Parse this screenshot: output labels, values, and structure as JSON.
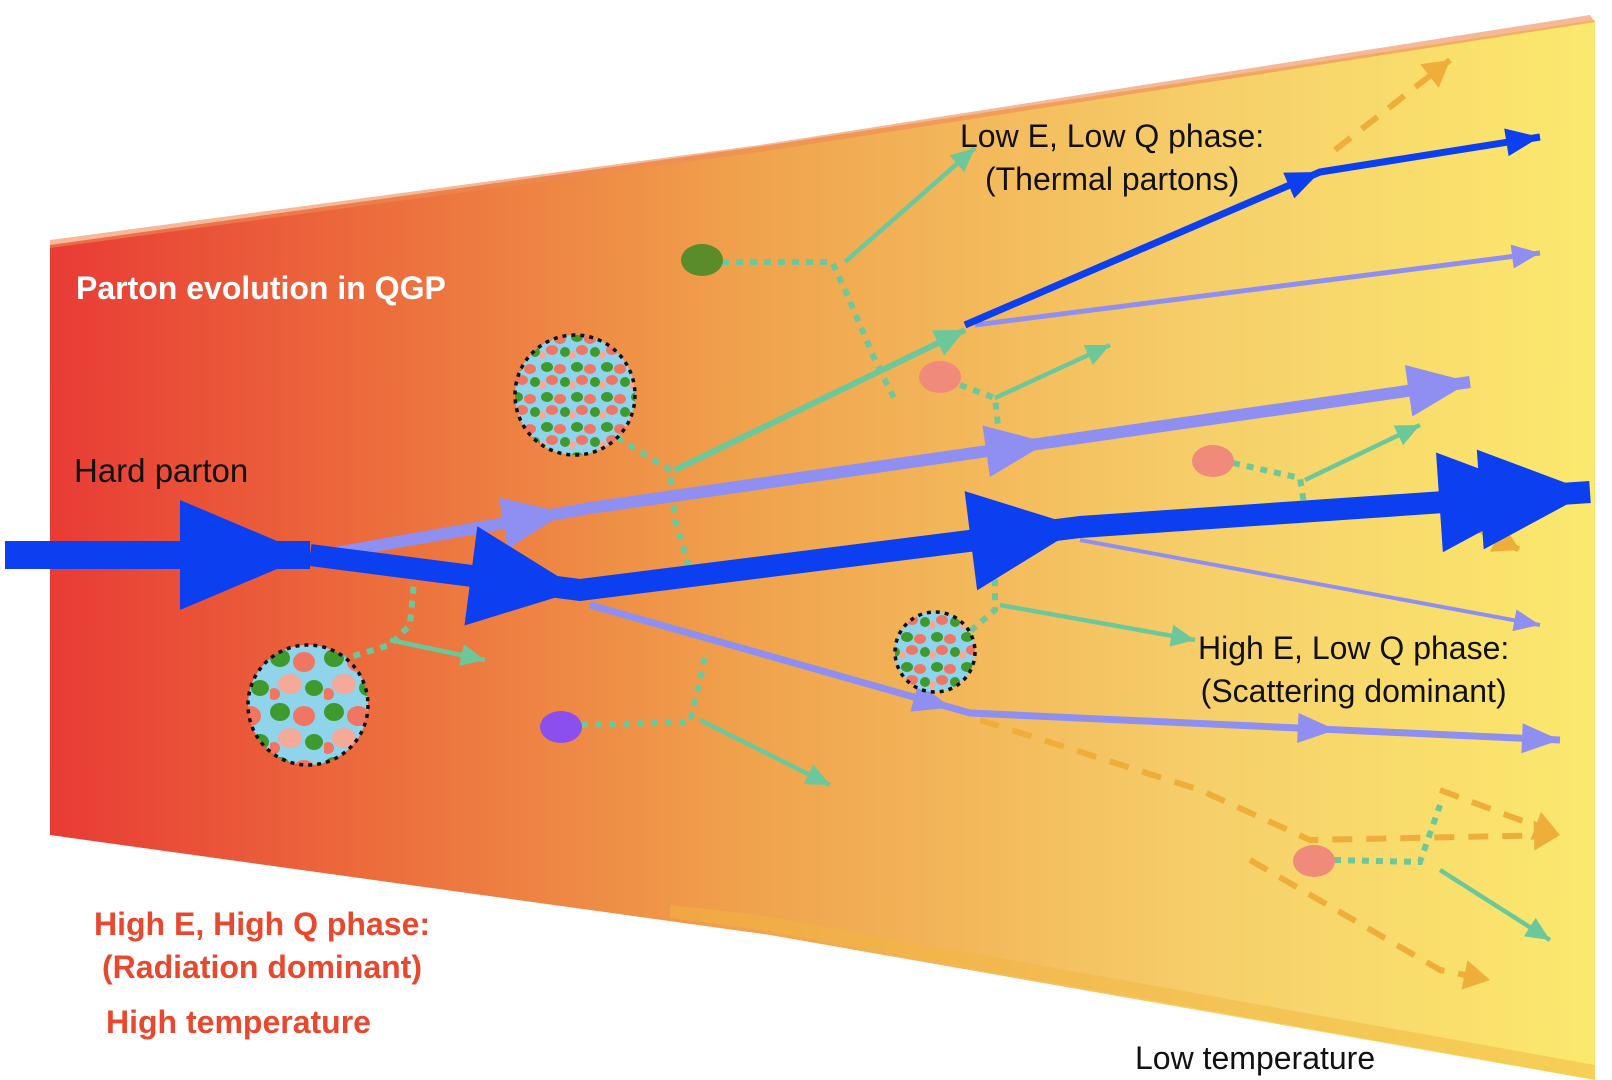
{
  "labels": {
    "title": "Parton evolution in QGP",
    "hard_parton": "Hard parton",
    "low_e_low_q_line1": "Low E, Low Q phase:",
    "low_e_low_q_line2": "(Thermal partons)",
    "high_e_low_q_line1": "High E, Low Q phase:",
    "high_e_low_q_line2": "(Scattering dominant)",
    "high_e_high_q_line1": "High E, High Q phase:",
    "high_e_high_q_line2": "(Radiation dominant)",
    "high_temperature": "High temperature",
    "low_temperature": "Low temperature"
  },
  "colors": {
    "medium_hot": "#e83b35",
    "medium_mid": "#f0a24c",
    "medium_cool": "#fbe96e",
    "hard_parton": "#0b3ff0",
    "soft_parton": "#8f8ff2",
    "thermal_link": "#6cc89a",
    "dashed_recoil": "#efae39",
    "thermal_red": "#f08a7a",
    "thermal_green": "#5a8c2a",
    "thermal_purple": "#8b4ff0",
    "label_red": "#e8482e"
  }
}
